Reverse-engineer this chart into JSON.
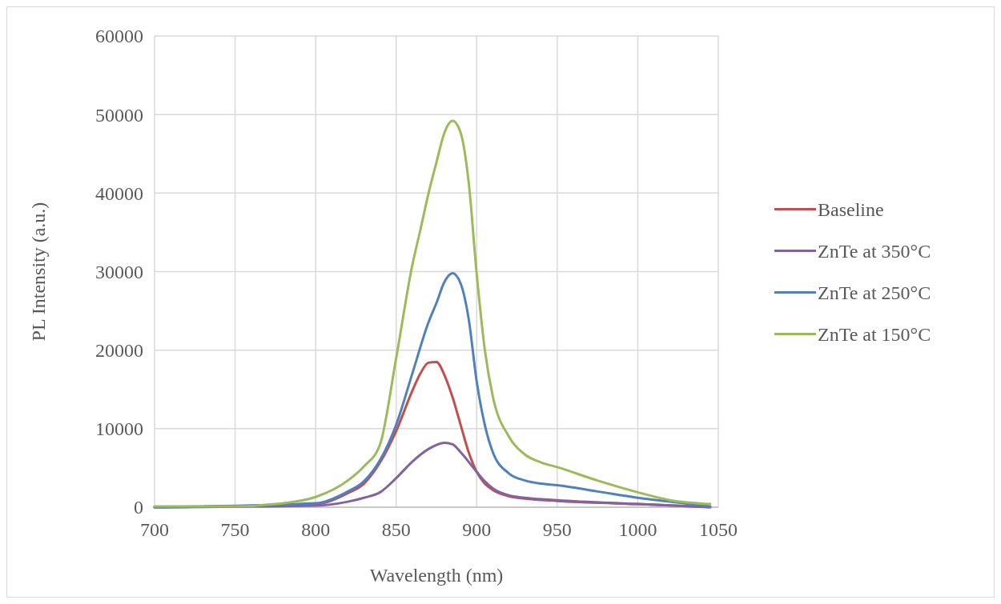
{
  "chart_data": {
    "type": "line",
    "xlabel": "Wavelength (nm)",
    "ylabel": "PL Intensity (a.u.)",
    "xlim": [
      700,
      1050
    ],
    "ylim": [
      0,
      60000
    ],
    "xticks": [
      700,
      750,
      800,
      850,
      900,
      950,
      1000,
      1050
    ],
    "yticks": [
      0,
      10000,
      20000,
      30000,
      40000,
      50000,
      60000
    ],
    "grid": true,
    "legend": "right",
    "marker": "none",
    "line_style": "solid",
    "series": [
      {
        "name": "Baseline",
        "color": "#c0504d",
        "x": [
          700,
          800,
          820,
          830,
          840,
          850,
          860,
          865,
          870,
          875,
          880,
          885,
          890,
          895,
          900,
          905,
          910,
          920,
          930,
          950,
          1000,
          1045
        ],
        "values": [
          0,
          400,
          1800,
          3000,
          5700,
          9700,
          14800,
          17000,
          18400,
          18500,
          16800,
          14000,
          10500,
          7000,
          4500,
          3000,
          2200,
          1400,
          1100,
          800,
          400,
          0
        ]
      },
      {
        "name": "ZnTe at 350°C",
        "color": "#8064a2",
        "x": [
          700,
          800,
          820,
          830,
          840,
          850,
          860,
          870,
          880,
          885,
          890,
          900,
          905,
          910,
          920,
          930,
          950,
          1000,
          1045
        ],
        "values": [
          0,
          200,
          700,
          1200,
          1900,
          3700,
          5800,
          7400,
          8200,
          8000,
          7000,
          4500,
          3300,
          2400,
          1500,
          1200,
          900,
          400,
          0
        ]
      },
      {
        "name": "ZnTe at 250°C",
        "color": "#4f81bd",
        "x": [
          700,
          800,
          820,
          830,
          840,
          850,
          860,
          870,
          875,
          880,
          885,
          890,
          895,
          900,
          905,
          910,
          920,
          930,
          940,
          950,
          975,
          1000,
          1020,
          1045
        ],
        "values": [
          0,
          500,
          2000,
          3300,
          6000,
          10500,
          17000,
          23500,
          26000,
          28700,
          29800,
          28500,
          24000,
          16000,
          10500,
          7000,
          4300,
          3400,
          3000,
          2800,
          2000,
          1200,
          700,
          100
        ]
      },
      {
        "name": "ZnTe at 150°C",
        "color": "#9bbb59",
        "x": [
          700,
          750,
          775,
          800,
          820,
          830,
          840,
          850,
          860,
          865,
          870,
          875,
          880,
          885,
          890,
          895,
          900,
          905,
          910,
          920,
          930,
          940,
          950,
          975,
          1000,
          1020,
          1045
        ],
        "values": [
          100,
          100,
          400,
          1300,
          3400,
          5200,
          8000,
          19000,
          30800,
          35300,
          39900,
          43900,
          47700,
          49200,
          47700,
          41400,
          29700,
          20100,
          14100,
          9000,
          6700,
          5700,
          5100,
          3400,
          1900,
          900,
          400
        ]
      }
    ]
  }
}
